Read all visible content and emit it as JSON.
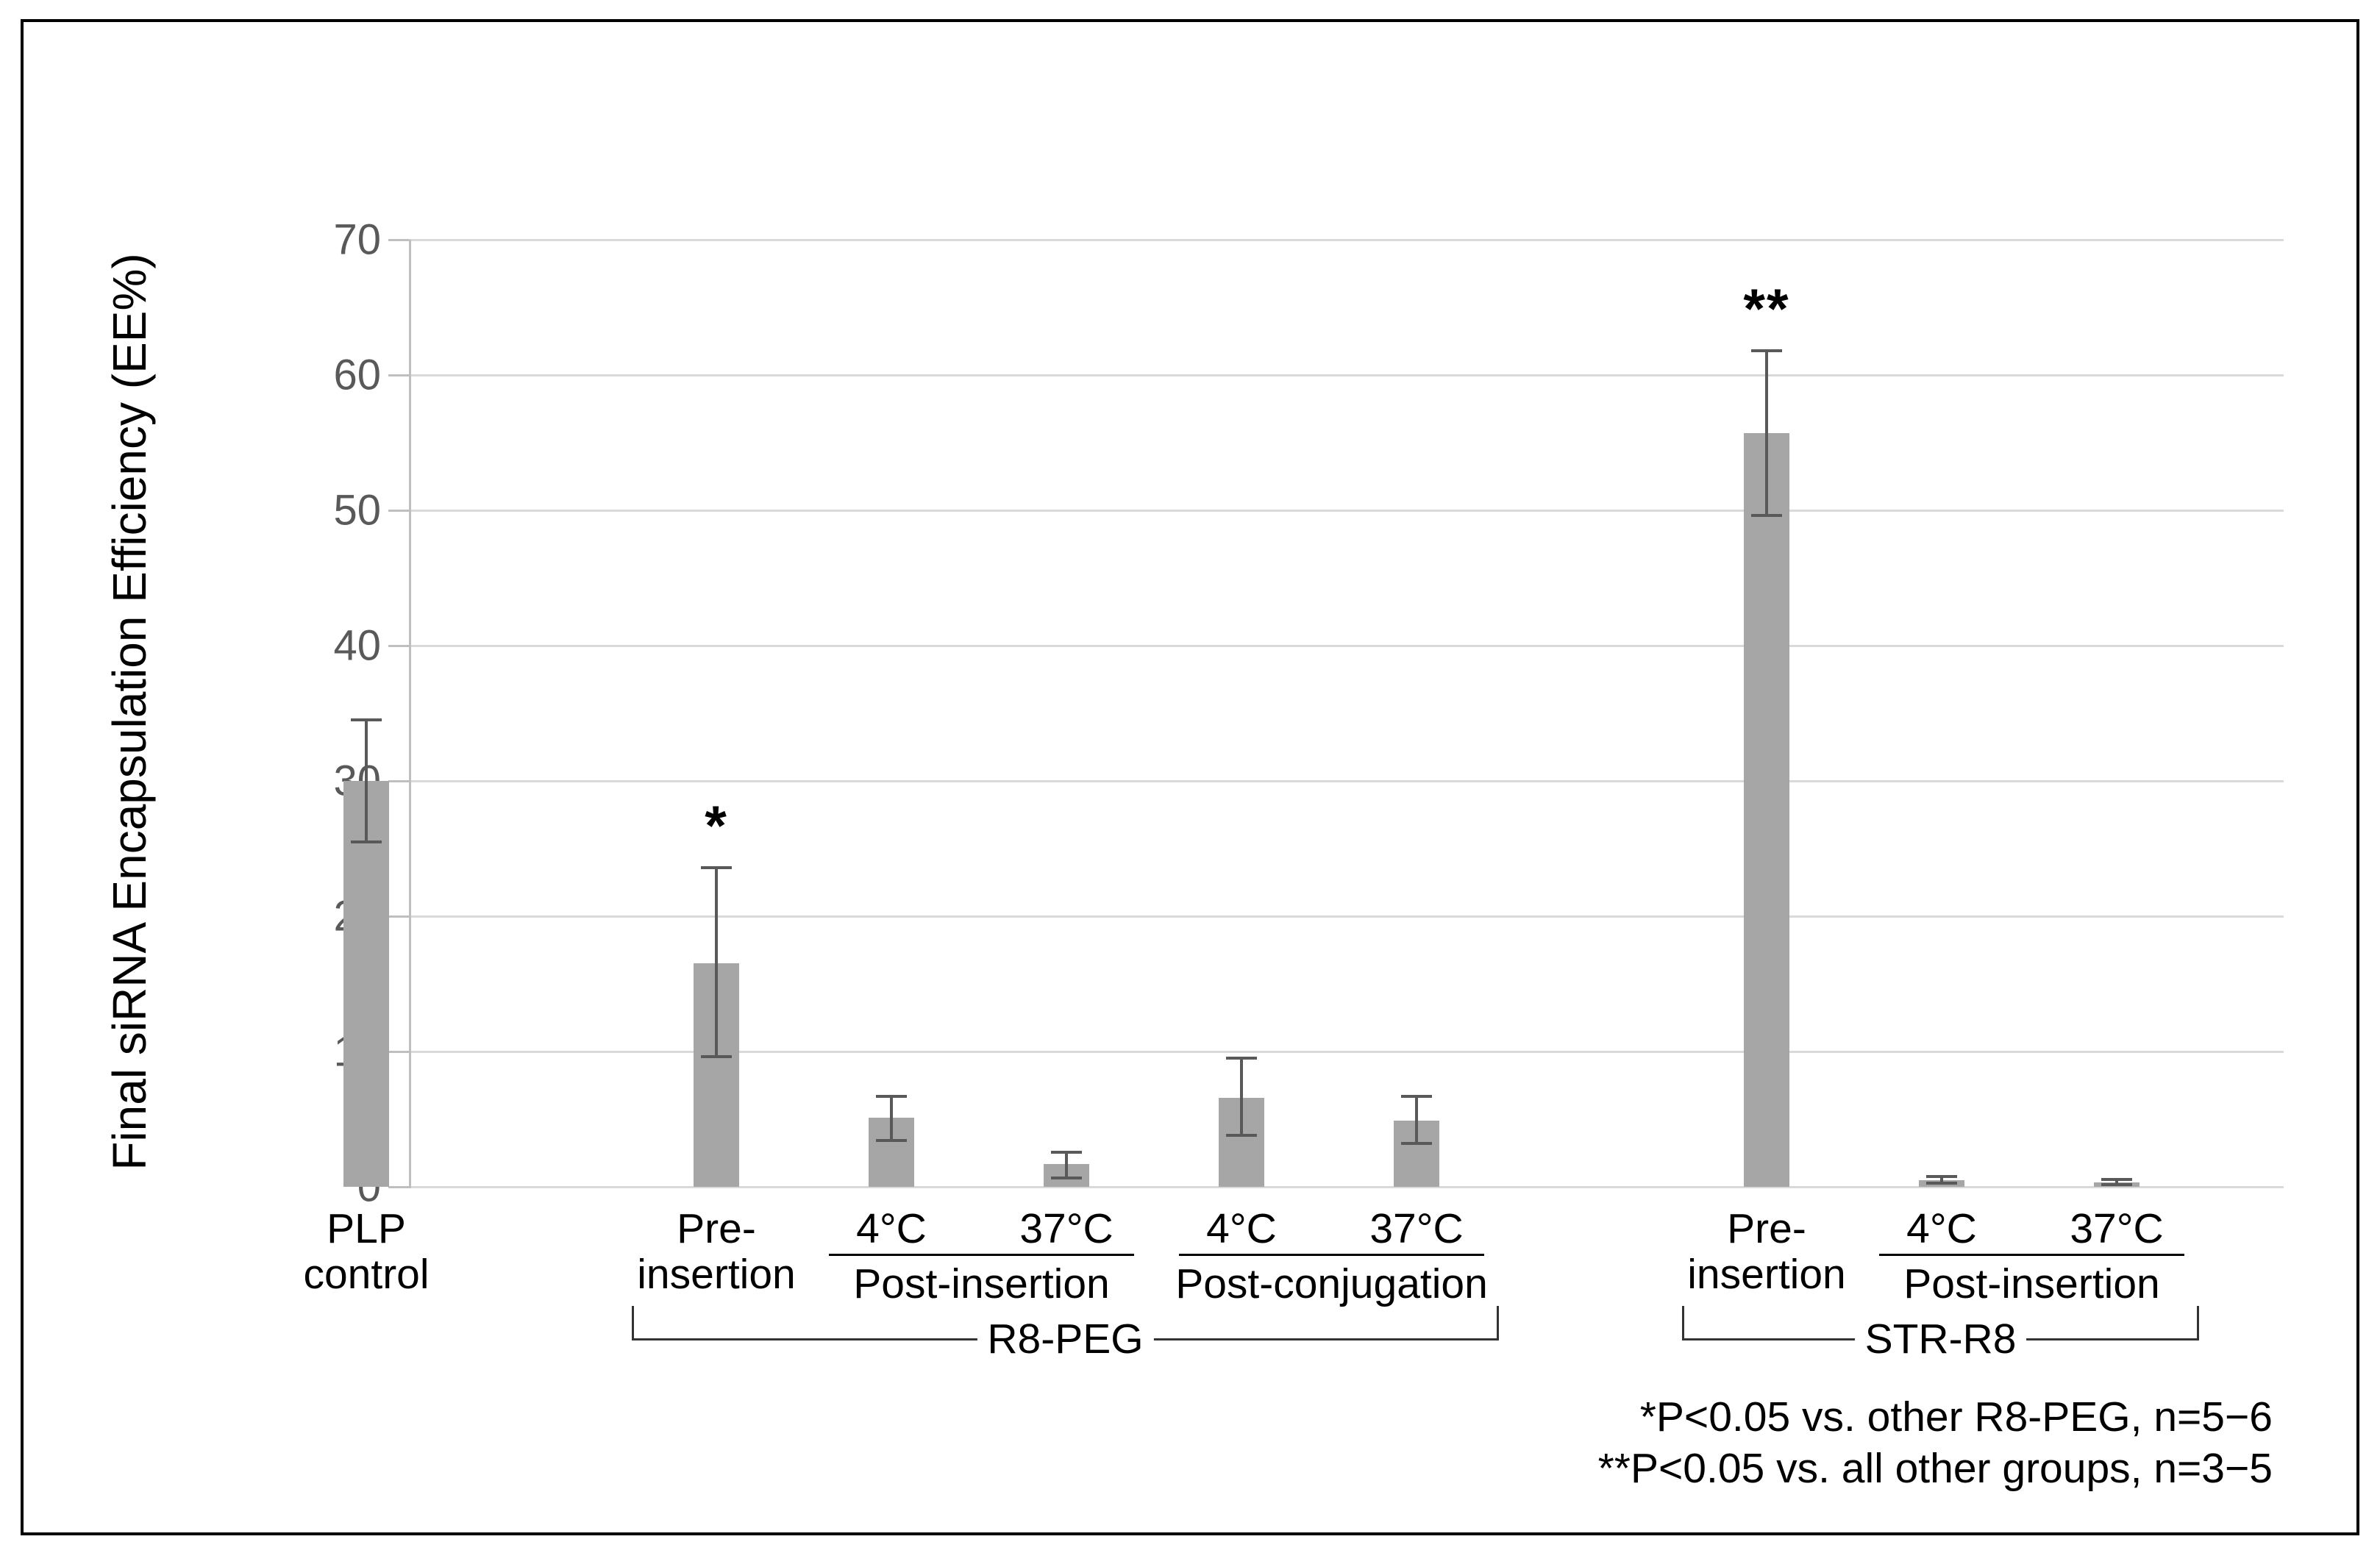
{
  "chart_data": {
    "type": "bar",
    "title": "",
    "xlabel": "",
    "ylabel": "Final siRNA Encapsulation Efficiency (EE%)",
    "ylim": [
      0,
      70
    ],
    "ytick_step": 10,
    "grid": true,
    "legend": "none",
    "bar_color": "#a6a6a6",
    "error_bar_color": "#595959",
    "gridline_color": "#d9d9d9",
    "axis_line_color": "#bfbfbf",
    "tick_label_color": "#595959",
    "categories": [
      {
        "slot": 0,
        "label_lines": [
          "PLP",
          "control"
        ],
        "value": 30.0,
        "err_up": 4.5,
        "err_dn": 4.5,
        "star": ""
      },
      {
        "slot": 2,
        "label_lines": [
          "Pre-",
          "insertion"
        ],
        "value": 16.5,
        "err_up": 7.1,
        "err_dn": 6.9,
        "star": "*"
      },
      {
        "slot": 3,
        "label_lines": [
          "4°C"
        ],
        "value": 5.1,
        "err_up": 1.6,
        "err_dn": 1.7,
        "star": ""
      },
      {
        "slot": 4,
        "label_lines": [
          "37°C"
        ],
        "value": 1.7,
        "err_up": 0.85,
        "err_dn": 1.05,
        "star": ""
      },
      {
        "slot": 5,
        "label_lines": [
          "4°C"
        ],
        "value": 6.6,
        "err_up": 2.9,
        "err_dn": 2.8,
        "star": ""
      },
      {
        "slot": 6,
        "label_lines": [
          "37°C"
        ],
        "value": 4.9,
        "err_up": 1.8,
        "err_dn": 1.7,
        "star": ""
      },
      {
        "slot": 8,
        "label_lines": [
          "Pre-",
          "insertion"
        ],
        "value": 55.7,
        "err_up": 6.1,
        "err_dn": 6.1,
        "star": "**"
      },
      {
        "slot": 9,
        "label_lines": [
          "4°C"
        ],
        "value": 0.5,
        "err_up": 0.25,
        "err_dn": 0.25,
        "star": ""
      },
      {
        "slot": 10,
        "label_lines": [
          "37°C"
        ],
        "value": 0.35,
        "err_up": 0.2,
        "err_dn": 0.2,
        "star": ""
      }
    ],
    "subgroup_underlines": [
      {
        "from_slot": 3,
        "to_slot": 4,
        "label": "Post-insertion"
      },
      {
        "from_slot": 5,
        "to_slot": 6,
        "label": "Post-conjugation"
      },
      {
        "from_slot": 9,
        "to_slot": 10,
        "label": "Post-insertion"
      }
    ],
    "group_brackets": [
      {
        "from_slot": 2,
        "to_slot": 6,
        "label": "R8-PEG"
      },
      {
        "from_slot": 8,
        "to_slot": 10,
        "label": "STR-R8"
      }
    ],
    "significance_notes": [
      "*P<0.05 vs. other R8-PEG, n=5−6",
      "**P<0.05 vs. all other groups, n=3−5"
    ]
  }
}
